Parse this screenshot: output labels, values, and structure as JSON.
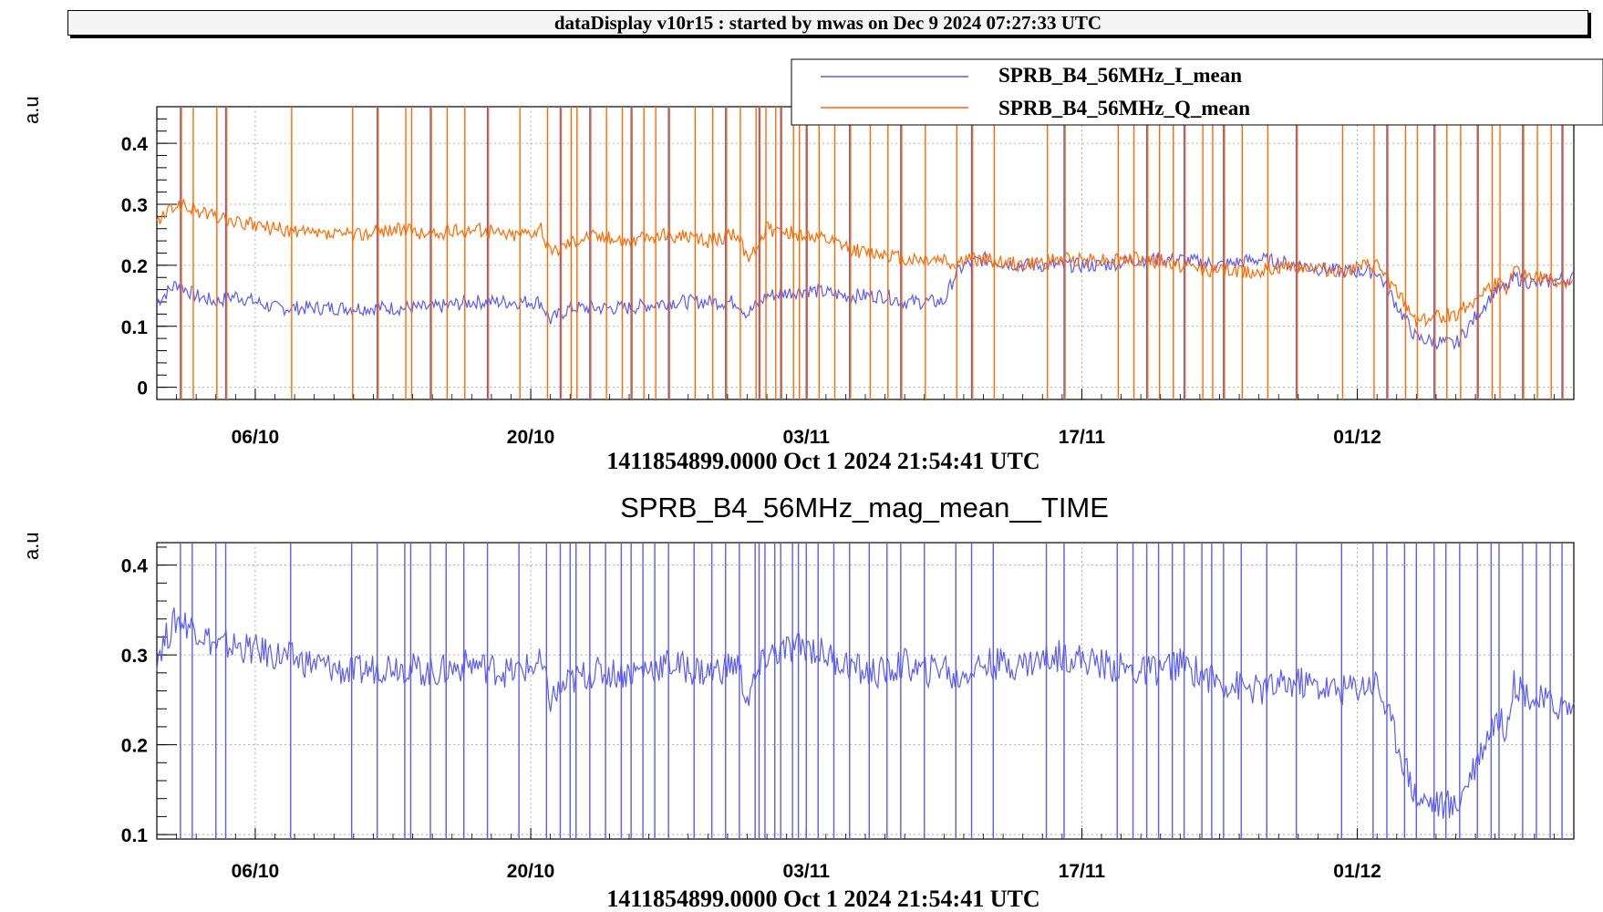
{
  "header": {
    "title": "dataDisplay v10r15 : started by mwas on Dec  9 2024 07:27:33 UTC"
  },
  "colors": {
    "I_mean": "#5b5bf5",
    "Q_mean": "#ff6a00",
    "mag_mean": "#5b5bf5",
    "grid": "#9a9a9a"
  },
  "chart_data": [
    {
      "type": "line",
      "title": "",
      "ylabel": "a.u",
      "xlabel": "1411854899.0000 Oct 1 2024 21:54:41 UTC",
      "ylim": [
        -0.02,
        0.46
      ],
      "yticks": [
        "0",
        "0.1",
        "0.2",
        "0.3",
        "0.4"
      ],
      "xticks": [
        "06/10",
        "20/10",
        "03/11",
        "17/11",
        "01/12"
      ],
      "grid": true,
      "legend_placement": "top-right",
      "series": [
        {
          "name": "SPRB_B4_56MHz_I_mean",
          "x": [
            0,
            1,
            2,
            3,
            4,
            6,
            8,
            10,
            12,
            14,
            16,
            18,
            19.5,
            20,
            21,
            22,
            24,
            26,
            28,
            29.5,
            30,
            31,
            33,
            35,
            36,
            37,
            38,
            39,
            40,
            40.5,
            41,
            42,
            44,
            46,
            48,
            50,
            52,
            54,
            56,
            58,
            60,
            62,
            64,
            66,
            68,
            68.5,
            69,
            70,
            72
          ],
          "values": [
            0.14,
            0.17,
            0.15,
            0.14,
            0.15,
            0.13,
            0.13,
            0.13,
            0.13,
            0.13,
            0.14,
            0.14,
            0.14,
            0.11,
            0.13,
            0.13,
            0.13,
            0.14,
            0.14,
            0.14,
            0.12,
            0.15,
            0.16,
            0.15,
            0.15,
            0.15,
            0.14,
            0.14,
            0.14,
            0.18,
            0.2,
            0.21,
            0.2,
            0.2,
            0.2,
            0.21,
            0.21,
            0.2,
            0.21,
            0.2,
            0.19,
            0.19,
            0.08,
            0.07,
            0.16,
            0.16,
            0.18,
            0.17,
            0.18
          ]
        },
        {
          "name": "SPRB_B4_56MHz_Q_mean",
          "x": [
            0,
            1,
            2,
            3,
            4,
            6,
            8,
            10,
            12,
            14,
            16,
            18,
            19.5,
            20,
            21,
            22,
            24,
            26,
            28,
            29.5,
            30,
            31,
            33,
            35,
            36,
            37,
            38,
            39,
            40,
            40.5,
            41,
            42,
            44,
            46,
            48,
            50,
            52,
            54,
            56,
            58,
            60,
            62,
            64,
            66,
            68,
            68.5,
            69,
            70,
            72
          ],
          "values": [
            0.27,
            0.3,
            0.29,
            0.28,
            0.27,
            0.26,
            0.25,
            0.25,
            0.26,
            0.25,
            0.26,
            0.25,
            0.26,
            0.22,
            0.24,
            0.25,
            0.24,
            0.25,
            0.24,
            0.25,
            0.21,
            0.26,
            0.25,
            0.23,
            0.22,
            0.22,
            0.21,
            0.21,
            0.21,
            0.2,
            0.21,
            0.21,
            0.2,
            0.21,
            0.21,
            0.21,
            0.2,
            0.19,
            0.19,
            0.2,
            0.19,
            0.2,
            0.11,
            0.12,
            0.17,
            0.16,
            0.19,
            0.18,
            0.17
          ]
        }
      ]
    },
    {
      "type": "line",
      "title": "SPRB_B4_56MHz_mag_mean__TIME",
      "ylabel": "a.u",
      "xlabel": "1411854899.0000 Oct 1 2024 21:54:41 UTC",
      "ylim": [
        0.095,
        0.425
      ],
      "yticks": [
        "0.1",
        "0.2",
        "0.3",
        "0.4"
      ],
      "xticks": [
        "06/10",
        "20/10",
        "03/11",
        "17/11",
        "01/12"
      ],
      "grid": true,
      "series": [
        {
          "name": "",
          "x": [
            0,
            1,
            2,
            3,
            4,
            6,
            8,
            10,
            12,
            14,
            16,
            18,
            19.5,
            20,
            21,
            22,
            24,
            26,
            28,
            29.5,
            30,
            31,
            33,
            35,
            36,
            37,
            38,
            39,
            40,
            40.5,
            41,
            42,
            44,
            46,
            48,
            50,
            52,
            54,
            56,
            58,
            60,
            62,
            64,
            66,
            68,
            68.5,
            69,
            70,
            72
          ],
          "values": [
            0.3,
            0.34,
            0.33,
            0.31,
            0.31,
            0.3,
            0.29,
            0.28,
            0.29,
            0.28,
            0.29,
            0.28,
            0.29,
            0.25,
            0.27,
            0.28,
            0.28,
            0.29,
            0.28,
            0.29,
            0.25,
            0.3,
            0.31,
            0.29,
            0.28,
            0.28,
            0.29,
            0.28,
            0.29,
            0.27,
            0.28,
            0.29,
            0.29,
            0.3,
            0.29,
            0.28,
            0.29,
            0.27,
            0.26,
            0.27,
            0.26,
            0.27,
            0.14,
            0.13,
            0.23,
            0.22,
            0.27,
            0.25,
            0.24
          ]
        }
      ]
    }
  ]
}
